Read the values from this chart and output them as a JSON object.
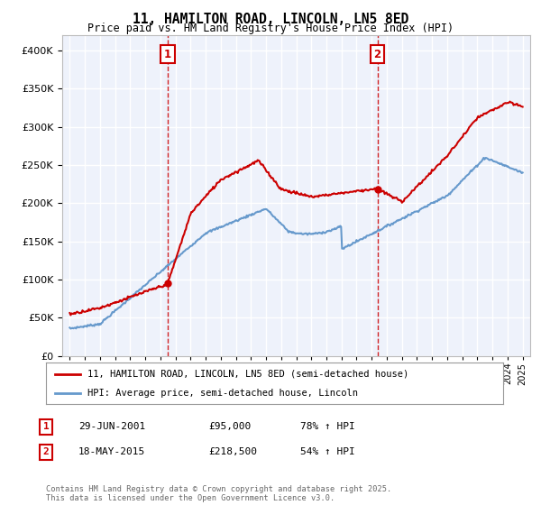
{
  "title": "11, HAMILTON ROAD, LINCOLN, LN5 8ED",
  "subtitle": "Price paid vs. HM Land Registry's House Price Index (HPI)",
  "legend_line1": "11, HAMILTON ROAD, LINCOLN, LN5 8ED (semi-detached house)",
  "legend_line2": "HPI: Average price, semi-detached house, Lincoln",
  "annotation1_label": "1",
  "annotation1_date": "29-JUN-2001",
  "annotation1_price": "£95,000",
  "annotation1_hpi": "78% ↑ HPI",
  "annotation1_year": 2001.49,
  "annotation1_value": 95000,
  "annotation2_label": "2",
  "annotation2_date": "18-MAY-2015",
  "annotation2_price": "£218,500",
  "annotation2_hpi": "54% ↑ HPI",
  "annotation2_year": 2015.38,
  "annotation2_value": 218500,
  "red_color": "#cc0000",
  "blue_color": "#6699cc",
  "background_color": "#eef2fb",
  "grid_color": "#ffffff",
  "ylim": [
    0,
    420000
  ],
  "yticks": [
    0,
    50000,
    100000,
    150000,
    200000,
    250000,
    300000,
    350000,
    400000
  ],
  "xlim": [
    1994.5,
    2025.5
  ],
  "footer": "Contains HM Land Registry data © Crown copyright and database right 2025.\nThis data is licensed under the Open Government Licence v3.0."
}
